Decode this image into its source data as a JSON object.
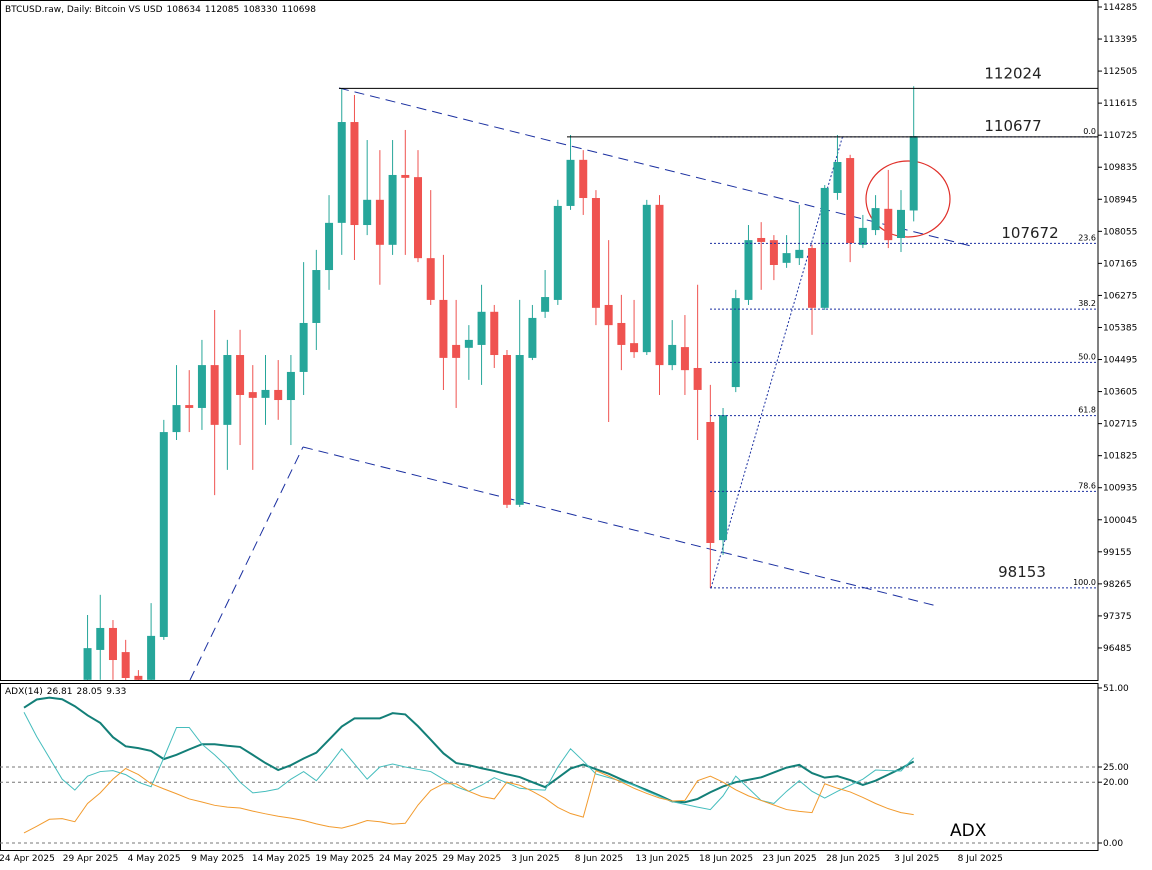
{
  "chart_data": [
    {
      "type": "candlestick",
      "title": "BTCUSD.raw, Daily:  Bitcoin VS USD",
      "categories": [
        "24 Apr 2025",
        null,
        null,
        null,
        null,
        "29 Apr 2025",
        null,
        null,
        null,
        null,
        "4 May 2025",
        null,
        null,
        null,
        null,
        "9 May 2025",
        null,
        null,
        null,
        null,
        "14 May 2025",
        null,
        null,
        null,
        null,
        "19 May 2025",
        null,
        null,
        null,
        null,
        "24 May 2025",
        null,
        null,
        null,
        null,
        "29 May 2025",
        null,
        null,
        null,
        null,
        "3 Jun 2025",
        null,
        null,
        null,
        null,
        "8 Jun 2025",
        null,
        null,
        null,
        null,
        "13 Jun 2025",
        null,
        null,
        null,
        null,
        "18 Jun 2025",
        null,
        null,
        null,
        null,
        "23 Jun 2025",
        null,
        null,
        null,
        null,
        "28 Jun 2025",
        null,
        null,
        null,
        null,
        "3 Jul 2025",
        null,
        null,
        null,
        null,
        "8 Jul 2025"
      ],
      "open": [
        null,
        null,
        null,
        null,
        null,
        95600,
        96430,
        97040,
        96370,
        95710,
        95600,
        96790,
        102480,
        103230,
        103150,
        104340,
        102680,
        104620,
        103590,
        103430,
        103650,
        103370,
        104150,
        105510,
        106980,
        108290,
        111090,
        108230,
        108930,
        107680,
        109620,
        109560,
        107310,
        106150,
        104900,
        104820,
        104900,
        105820,
        104620,
        100460,
        104540,
        105820,
        106150,
        108760,
        110040,
        108980,
        106010,
        105510,
        104950,
        104700,
        108790,
        104340,
        104840,
        104260,
        102760,
        99480,
        103730,
        106150,
        107870,
        107810,
        107180,
        107310,
        107590,
        105930,
        109120,
        110090,
        107680,
        108090,
        108680,
        107870,
        108634,
        null,
        null,
        null,
        null,
        null
      ],
      "high": [
        null,
        null,
        null,
        null,
        null,
        97400,
        97960,
        97260,
        96710,
        95870,
        97730,
        102820,
        104340,
        104200,
        105040,
        105870,
        105040,
        105320,
        104340,
        104620,
        104480,
        104620,
        107200,
        107540,
        109060,
        112024,
        111840,
        110590,
        110310,
        110590,
        110870,
        110310,
        109200,
        107400,
        106150,
        105450,
        106570,
        106010,
        104760,
        106150,
        106010,
        106980,
        108930,
        110730,
        110310,
        109200,
        107810,
        106290,
        106150,
        108930,
        109060,
        105590,
        105730,
        106570,
        103790,
        103150,
        106430,
        108230,
        108310,
        107950,
        107950,
        108790,
        107680,
        109340,
        110730,
        110180,
        108510,
        109060,
        109760,
        109200,
        112085,
        null,
        null,
        null,
        null,
        null
      ],
      "low": [
        null,
        null,
        null,
        null,
        null,
        95320,
        95600,
        95600,
        95040,
        95040,
        95040,
        96710,
        102260,
        102480,
        102540,
        100730,
        101430,
        102120,
        101430,
        102680,
        102820,
        102120,
        103510,
        104760,
        106430,
        107400,
        107260,
        107950,
        106570,
        107400,
        107400,
        107200,
        106010,
        103650,
        103150,
        103930,
        103790,
        104260,
        100370,
        100400,
        104480,
        105650,
        106010,
        108650,
        108510,
        105450,
        102760,
        104200,
        104540,
        104620,
        103510,
        104200,
        103510,
        102260,
        98153,
        99070,
        103590,
        106010,
        106430,
        106700,
        107040,
        107120,
        105180,
        105870,
        108930,
        107200,
        107590,
        107950,
        107590,
        107480,
        108330,
        null,
        null,
        null,
        null,
        null
      ],
      "close": [
        null,
        null,
        null,
        null,
        null,
        96480,
        97040,
        96150,
        95650,
        95600,
        96820,
        102480,
        103230,
        103150,
        104340,
        102680,
        104620,
        103510,
        103430,
        103650,
        103370,
        104150,
        105510,
        106980,
        108290,
        111090,
        108230,
        108930,
        107680,
        109620,
        109540,
        107310,
        106150,
        104540,
        104540,
        105040,
        105820,
        104620,
        100460,
        104620,
        105650,
        106230,
        108760,
        110040,
        108980,
        105930,
        105450,
        104900,
        104700,
        108790,
        104340,
        104900,
        104200,
        103650,
        99400,
        102950,
        106200,
        107810,
        107760,
        107120,
        107450,
        107540,
        105930,
        109260,
        109980,
        107730,
        108150,
        108700,
        107810,
        108650,
        110698,
        null,
        null,
        null,
        null,
        null
      ],
      "up_color": "#26a69a",
      "down_color": "#ef5350",
      "ylim": [
        95595,
        114479
      ],
      "yticks": [
        114285,
        113395,
        112505,
        111615,
        110725,
        109835,
        108945,
        108055,
        107165,
        106275,
        105385,
        104495,
        103605,
        102715,
        101825,
        100935,
        100045,
        99155,
        98265,
        97375,
        96485
      ],
      "price_levels": [
        112024,
        110677,
        107672,
        98153
      ],
      "fib_levels": [
        {
          "label": "0.0",
          "value": 110677
        },
        {
          "label": "23.6",
          "value": 107720
        },
        {
          "label": "38.2",
          "value": 105893
        },
        {
          "label": "50.0",
          "value": 104415
        },
        {
          "label": "61.8",
          "value": 102937
        },
        {
          "label": "78.6",
          "value": 100833
        },
        {
          "label": "100.0",
          "value": 98153
        }
      ]
    },
    {
      "type": "line",
      "title": "ADX(14)",
      "series": [
        {
          "color": "#137f78",
          "values": [
            44.5,
            47.2,
            47.8,
            47.3,
            45,
            42,
            39.5,
            34.8,
            31.8,
            31.2,
            30.3,
            27.6,
            29,
            30.8,
            32.5,
            32.5,
            32,
            31.6,
            29,
            26.3,
            24,
            25.6,
            27.8,
            29.7,
            34,
            38.3,
            41,
            41,
            41,
            42.7,
            42.3,
            38.4,
            34,
            29.5,
            26.3,
            25.6,
            24.6,
            23.7,
            22.6,
            21.7,
            20,
            18.4,
            21.4,
            24.5,
            25.8,
            24.3,
            22.8,
            20.9,
            19.1,
            17.4,
            15.6,
            13.7,
            13.4,
            14.5,
            16.7,
            18.6,
            20,
            20.8,
            21.6,
            23.2,
            24.8,
            25.7,
            23,
            21.5,
            22,
            20.7,
            19.1,
            20.5,
            22.5,
            24.5,
            26.81,
            null,
            null,
            null,
            null,
            null
          ]
        },
        {
          "color": "#45bdbd",
          "values": [
            43,
            35,
            28,
            21,
            17.4,
            22,
            23.5,
            23.8,
            22.5,
            20,
            18.5,
            28,
            38,
            38,
            32.5,
            29,
            25,
            20,
            16.5,
            17,
            17.8,
            21,
            23.5,
            20.5,
            25.5,
            31,
            26,
            21,
            25,
            26,
            25,
            24.2,
            23.5,
            21,
            18.5,
            17,
            19,
            21.5,
            19.8,
            18,
            17.6,
            17.4,
            25,
            31,
            27,
            22.7,
            21.5,
            20.3,
            19,
            17,
            15.3,
            13.6,
            12.7,
            11.8,
            11,
            15.5,
            22,
            18,
            14,
            13,
            17,
            20.5,
            17,
            14.8,
            17,
            19,
            21,
            24,
            23.8,
            23.7,
            28.05,
            null,
            null,
            null,
            null,
            null
          ]
        },
        {
          "color": "#f29b2e",
          "values": [
            3.3,
            5.5,
            7.8,
            8,
            7,
            13,
            16.5,
            21,
            24.5,
            22.5,
            19.5,
            17.8,
            16.2,
            14.5,
            13.5,
            12.4,
            11.8,
            11.5,
            10.5,
            9.6,
            8.8,
            8.2,
            7.4,
            6.3,
            5.4,
            4.9,
            6,
            7.4,
            7,
            6.2,
            6.5,
            12.5,
            17.3,
            19.5,
            19.5,
            17,
            15.3,
            14.5,
            20,
            19,
            17,
            14.7,
            11.7,
            9.7,
            8.5,
            23.8,
            22,
            20,
            18,
            16.3,
            14.8,
            13.8,
            14,
            20.5,
            22,
            20,
            17.5,
            15.5,
            14,
            12.5,
            11,
            10.4,
            10,
            19.5,
            18,
            16.8,
            15,
            13,
            11.3,
            10,
            9.33,
            null,
            null,
            null,
            null,
            null
          ]
        }
      ],
      "ylim": [
        -2.3,
        52.63
      ],
      "yticks": [
        {
          "value": 0,
          "label": "0.00"
        },
        {
          "value": 20,
          "label": "20.00"
        },
        {
          "value": 25,
          "label": "25.00"
        },
        {
          "value": 51,
          "label": "51.00"
        }
      ],
      "grid": true,
      "annotation": "ADX",
      "annotation_color": "#2e9e3a"
    }
  ]
}
